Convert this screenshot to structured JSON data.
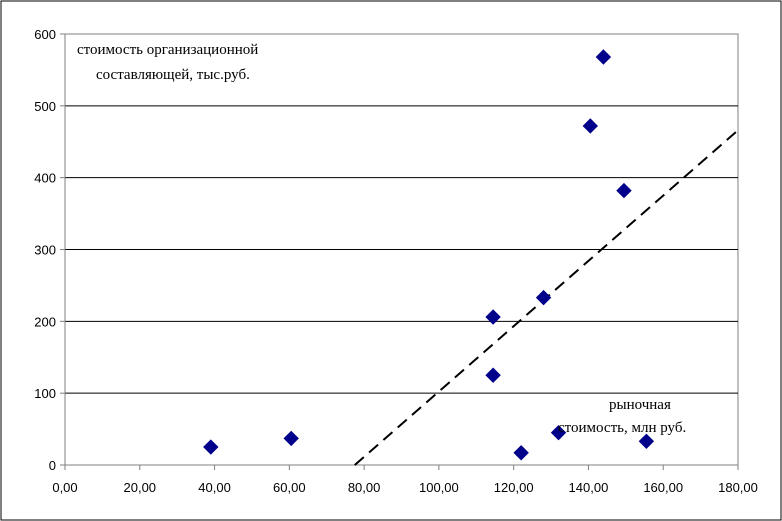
{
  "chart_data": {
    "type": "scatter",
    "title": "",
    "xlabel": "",
    "ylabel": "",
    "xlim": [
      0,
      180
    ],
    "ylim": [
      0,
      600
    ],
    "x_ticks": [
      "0,00",
      "20,00",
      "40,00",
      "60,00",
      "80,00",
      "100,00",
      "120,00",
      "140,00",
      "160,00",
      "180,00"
    ],
    "y_ticks": [
      "0",
      "100",
      "200",
      "300",
      "400",
      "500",
      "600"
    ],
    "grid": {
      "horizontal": true,
      "vertical": false
    },
    "annotations": {
      "y_axis_line1": "стоимость организационной",
      "y_axis_line2": "составляющей, тыс.руб.",
      "x_axis_line1": "рыночная",
      "x_axis_line2": "стоимость, млн руб."
    },
    "series": [
      {
        "color": "#00008B",
        "marker": "diamond",
        "points": [
          {
            "x": 39,
            "y": 25
          },
          {
            "x": 60.5,
            "y": 37
          },
          {
            "x": 114.5,
            "y": 206
          },
          {
            "x": 114.5,
            "y": 125
          },
          {
            "x": 122,
            "y": 17
          },
          {
            "x": 128,
            "y": 233
          },
          {
            "x": 132,
            "y": 45
          },
          {
            "x": 140.5,
            "y": 472
          },
          {
            "x": 144,
            "y": 568
          },
          {
            "x": 149.5,
            "y": 382
          },
          {
            "x": 155.5,
            "y": 33
          }
        ]
      }
    ],
    "trendline": {
      "style": "dashed",
      "color": "#000000",
      "from": {
        "x": 77.5,
        "y": 0
      },
      "to": {
        "x": 180,
        "y": 466
      }
    }
  }
}
